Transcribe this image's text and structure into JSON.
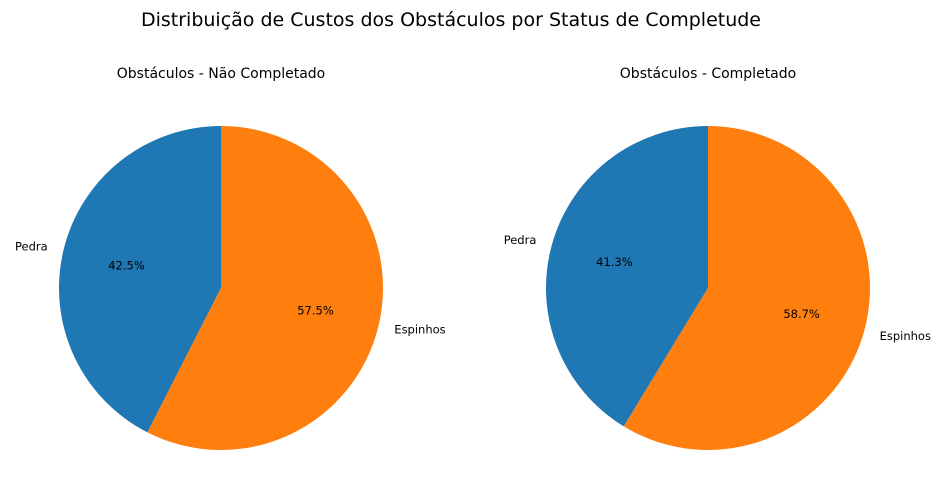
{
  "figure": {
    "suptitle": "Distribuição de Custos dos Obstáculos por Status de Completude"
  },
  "chart_data": [
    {
      "type": "pie",
      "title": "Obstáculos - Não Completado",
      "labels": [
        "Pedra",
        "Espinhos"
      ],
      "values": [
        42.5,
        57.5
      ],
      "percent_labels": [
        "42.5%",
        "57.5%"
      ],
      "colors": [
        "#1f77b4",
        "#ff7f0e"
      ],
      "start_angle_deg": 90,
      "direction": "counterclockwise"
    },
    {
      "type": "pie",
      "title": "Obstáculos - Completado",
      "labels": [
        "Pedra",
        "Espinhos"
      ],
      "values": [
        41.3,
        58.7
      ],
      "percent_labels": [
        "41.3%",
        "58.7%"
      ],
      "colors": [
        "#1f77b4",
        "#ff7f0e"
      ],
      "start_angle_deg": 90,
      "direction": "counterclockwise"
    }
  ]
}
